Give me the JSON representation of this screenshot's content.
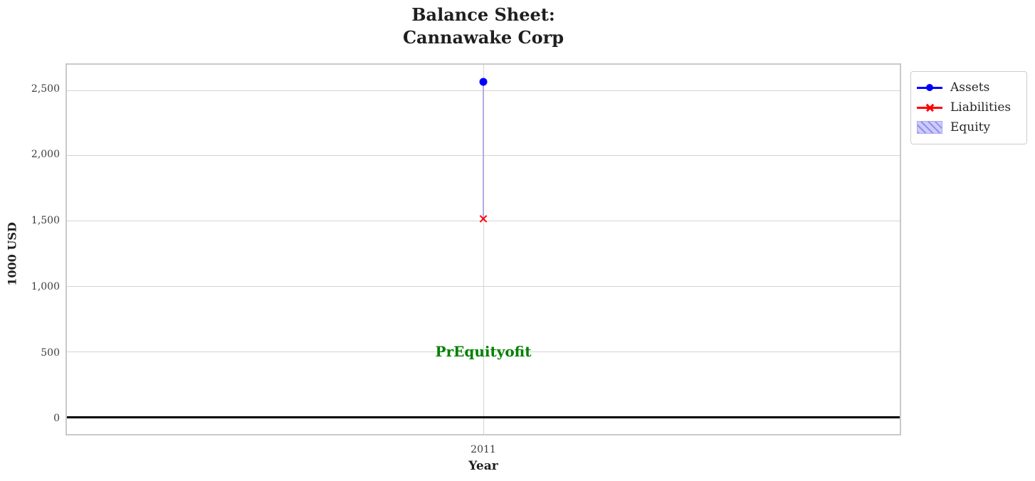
{
  "title": "Balance Sheet:\nCannawake Corp",
  "chart_data": {
    "type": "line",
    "title": "Balance Sheet: Cannawake Corp",
    "xlabel": "Year",
    "ylabel": "1000 USD",
    "x": [
      2011
    ],
    "xtick_labels": [
      "2011"
    ],
    "series": [
      {
        "name": "Assets",
        "values": [
          2560
        ],
        "color": "#0000ff",
        "marker": "circle"
      },
      {
        "name": "Liabilities",
        "values": [
          1515
        ],
        "color": "#ff0000",
        "marker": "x"
      },
      {
        "name": "Equity",
        "values": [
          1045
        ],
        "color": "#ccccfa",
        "marker": "patch",
        "band_between": [
          "Liabilities",
          "Assets"
        ]
      }
    ],
    "yticks": [
      0,
      500,
      1000,
      1500,
      2000,
      2500
    ],
    "ytick_labels": [
      "0",
      "500",
      "1,000",
      "1,500",
      "2,000",
      "2,500"
    ],
    "ylim": [
      -128,
      2693
    ],
    "grid": true,
    "zero_line": true,
    "legend_position": "outside-upper-right",
    "annotation": {
      "text": "PrEquityofit",
      "x": 2011,
      "y": 500,
      "color": "#008000"
    }
  },
  "colors": {
    "assets": "#0000ff",
    "liabilities": "#ff0000",
    "equity_band": "#b3aae4",
    "annotation_green": "#008000",
    "grid": "#d4d4d4",
    "zero_line": "#000000"
  }
}
